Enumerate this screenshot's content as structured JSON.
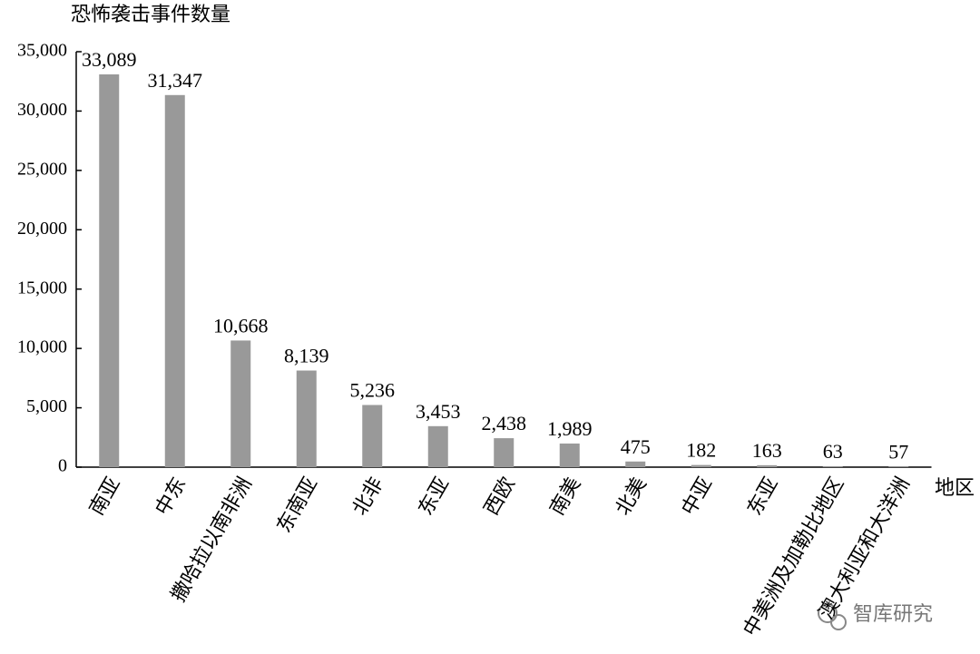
{
  "chart_data": {
    "type": "bar",
    "y_label": "恐怖袭击事件数量",
    "x_label": "地区",
    "categories": [
      "南亚",
      "中东",
      "撒哈拉以南非洲",
      "东南亚",
      "北非",
      "东亚",
      "西欧",
      "南美",
      "北美",
      "中亚",
      "东亚",
      "中美洲及加勒比地区",
      "澳大利亚和大洋洲"
    ],
    "values": [
      33089,
      31347,
      10668,
      8139,
      5236,
      3453,
      2438,
      1989,
      475,
      182,
      163,
      63,
      57
    ],
    "value_labels": [
      "33,089",
      "31,347",
      "10,668",
      "8,139",
      "5,236",
      "3,453",
      "2,438",
      "1,989",
      "475",
      "182",
      "163",
      "63",
      "57"
    ],
    "color": "#999999",
    "ylim": [
      0,
      35000
    ],
    "yticks": [
      0,
      {
        "value": 5000,
        "label": "5,000"
      },
      {
        "value": 10000,
        "label": "10,000"
      },
      {
        "value": 15000,
        "label": "15,000"
      },
      {
        "value": 20000,
        "label": "20,000"
      },
      {
        "value": 25000,
        "label": "25,000"
      },
      {
        "value": 30000,
        "label": "30,000"
      },
      {
        "value": 35000,
        "label": "35,000"
      }
    ],
    "grid": false
  },
  "watermark": "智库研究"
}
